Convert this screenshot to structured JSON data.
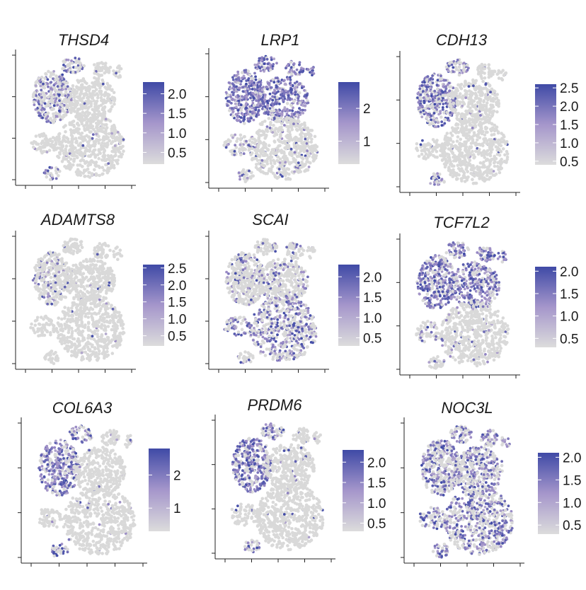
{
  "chart_data": [
    {
      "type": "scatter",
      "title": "THSD4",
      "colorbar_ticks": [
        "2.0",
        "1.5",
        "1.0",
        "0.5"
      ],
      "color_range": [
        0.2,
        2.3
      ],
      "high_region": "left-cluster",
      "level": 0.55
    },
    {
      "type": "scatter",
      "title": "LRP1",
      "colorbar_ticks": [
        "2",
        "1"
      ],
      "color_range": [
        0.3,
        2.8
      ],
      "high_region": "upper-broad",
      "level": 0.85
    },
    {
      "type": "scatter",
      "title": "CDH13",
      "colorbar_ticks": [
        "2.5",
        "2.0",
        "1.5",
        "1.0",
        "0.5"
      ],
      "color_range": [
        0.4,
        2.6
      ],
      "high_region": "left-cluster",
      "level": 0.7
    },
    {
      "type": "scatter",
      "title": "ADAMTS8",
      "colorbar_ticks": [
        "2.5",
        "2.0",
        "1.5",
        "1.0",
        "0.5"
      ],
      "color_range": [
        0.2,
        2.6
      ],
      "high_region": "left-sparse",
      "level": 0.2
    },
    {
      "type": "scatter",
      "title": "SCAI",
      "colorbar_ticks": [
        "2.0",
        "1.5",
        "1.0",
        "0.5"
      ],
      "color_range": [
        0.3,
        2.3
      ],
      "high_region": "lower-big",
      "level": 0.5
    },
    {
      "type": "scatter",
      "title": "TCF7L2",
      "colorbar_ticks": [
        "2.0",
        "1.5",
        "1.0",
        "0.5"
      ],
      "color_range": [
        0.3,
        2.1
      ],
      "high_region": "upper-broad",
      "level": 0.75
    },
    {
      "type": "scatter",
      "title": "COL6A3",
      "colorbar_ticks": [
        "2",
        "1"
      ],
      "color_range": [
        0.3,
        2.8
      ],
      "high_region": "left-cluster",
      "level": 0.75
    },
    {
      "type": "scatter",
      "title": "PRDM6",
      "colorbar_ticks": [
        "2.0",
        "1.5",
        "1.0",
        "0.5"
      ],
      "color_range": [
        0.3,
        2.3
      ],
      "high_region": "left-cluster",
      "level": 0.75
    },
    {
      "type": "scatter",
      "title": "NOC3L",
      "colorbar_ticks": [
        "2.0",
        "1.5",
        "1.0",
        "0.5"
      ],
      "color_range": [
        0.3,
        2.1
      ],
      "high_region": "all",
      "level": 0.55
    }
  ],
  "colors": {
    "low": "#d9d9d9",
    "mid": "#9c8cc6",
    "high": "#3f4aa6"
  }
}
